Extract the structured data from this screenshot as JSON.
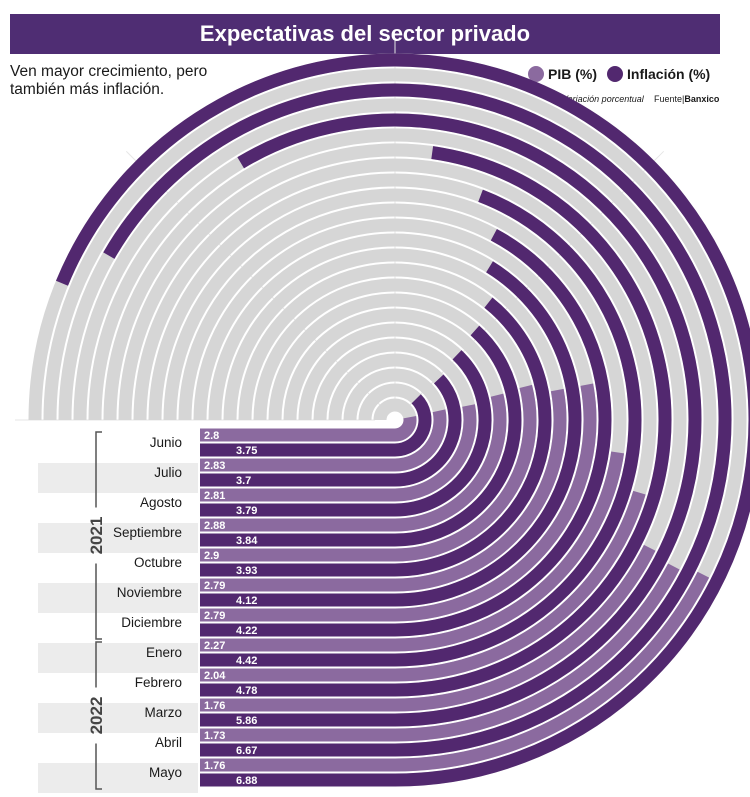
{
  "header": {
    "title": "Expectativas del sector privado",
    "subtitle": "Ven mayor crecimiento, pero también más inflación.",
    "units": "Variación porcentual",
    "source_prefix": "Fuente|",
    "source_name": "Banxico"
  },
  "legend": {
    "pib": "PIB (%)",
    "inflacion": "Inflación (%)"
  },
  "colors": {
    "title_bg": "#4f2d73",
    "pib": "#8b6a9f",
    "inflacion": "#52286f",
    "track": "#d6d6d6",
    "row_shade": "#ececec"
  },
  "chart_data": {
    "type": "radial-bar",
    "title": "Expectativas del sector privado",
    "subtitle": "Ven mayor crecimiento, pero también más inflación.",
    "unit": "Variación porcentual",
    "max_value": 7.5,
    "categories": [
      "Junio",
      "Julio",
      "Agosto",
      "Septiembre",
      "Octubre",
      "Noviembre",
      "Diciembre",
      "Enero",
      "Febrero",
      "Marzo",
      "Abril",
      "Mayo"
    ],
    "years": [
      {
        "label": "2021",
        "months": [
          "Junio",
          "Julio",
          "Agosto",
          "Septiembre",
          "Octubre",
          "Noviembre",
          "Diciembre"
        ]
      },
      {
        "label": "2022",
        "months": [
          "Enero",
          "Febrero",
          "Marzo",
          "Abril",
          "Mayo"
        ]
      }
    ],
    "series": [
      {
        "name": "PIB (%)",
        "values": [
          2.8,
          2.83,
          2.81,
          2.88,
          2.9,
          2.79,
          2.79,
          2.27,
          2.04,
          1.76,
          1.73,
          1.76
        ],
        "labels": [
          "2.8",
          "2.83",
          "2.81",
          "2.88",
          "2.9",
          "2.79",
          "2.79",
          "2.27",
          "2.04",
          "1.76",
          "1.73",
          "1.76"
        ]
      },
      {
        "name": "Inflación (%)",
        "values": [
          3.75,
          3.7,
          3.79,
          3.84,
          3.93,
          4.12,
          4.22,
          4.42,
          4.78,
          5.86,
          6.67,
          6.88
        ],
        "labels": [
          "3.75",
          "3.7",
          "3.79",
          "3.84",
          "3.93",
          "4.12",
          "4.22",
          "4.42",
          "4.78",
          "5.86",
          "6.67",
          "6.88"
        ]
      }
    ]
  }
}
